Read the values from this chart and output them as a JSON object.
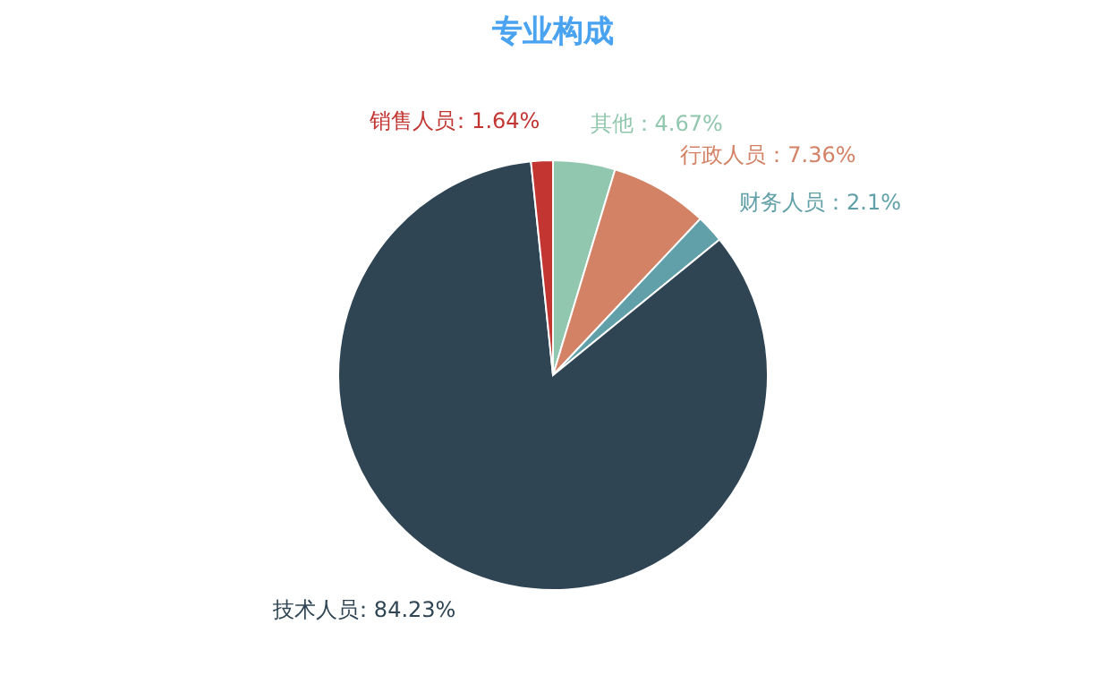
{
  "chart_data": {
    "type": "pie",
    "title": "专业构成",
    "categories": [
      "其他",
      "行政人员",
      "财务人员",
      "技术人员",
      "销售人员"
    ],
    "values": [
      4.67,
      7.36,
      2.1,
      84.23,
      1.64
    ],
    "colors": [
      "#91c7ae",
      "#d48265",
      "#61a0a8",
      "#2f4554",
      "#c23531"
    ],
    "value_labels": [
      "：4.67%",
      "：7.36%",
      "：2.1%",
      "：84.23%",
      "：1.64%"
    ],
    "legend": false
  }
}
